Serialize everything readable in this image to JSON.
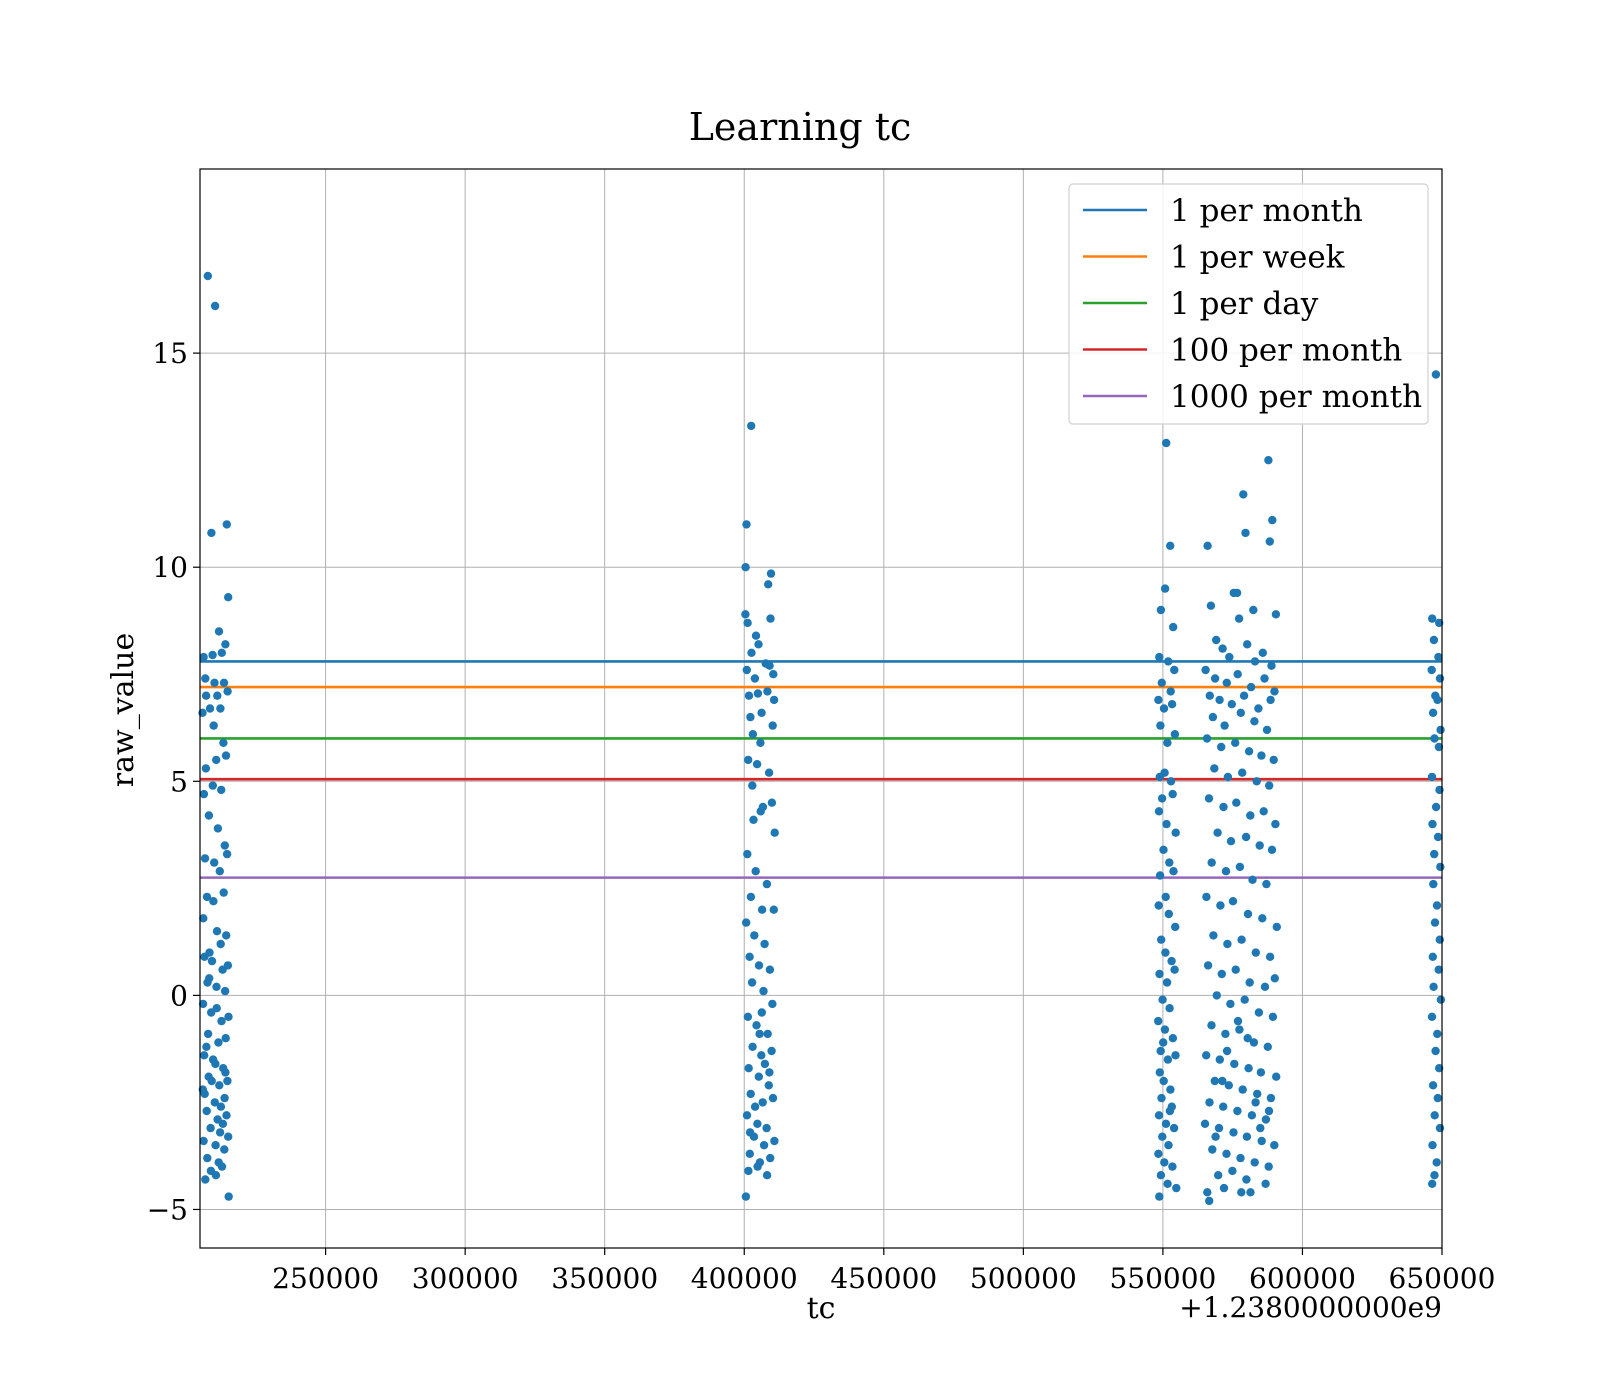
{
  "chart_data": {
    "type": "scatter",
    "title": "Learning tc",
    "xlabel": "tc",
    "ylabel": "raw_value",
    "x_offset_label": "+1.2380000000e9",
    "xlim": [
      205000,
      650000
    ],
    "ylim": [
      -5.9,
      19.3
    ],
    "xticks": [
      250000,
      300000,
      350000,
      400000,
      450000,
      500000,
      550000,
      600000,
      650000
    ],
    "yticks": [
      -5,
      0,
      5,
      10,
      15
    ],
    "ytick_labels": [
      "−5",
      "0",
      "5",
      "10",
      "15"
    ],
    "grid": true,
    "legend_placement": "top-right",
    "scatter_color": "#1f77b4",
    "reference_lines": [
      {
        "name": "1 per month",
        "y": 7.8,
        "color": "#1f77b4"
      },
      {
        "name": "1 per week",
        "y": 7.2,
        "color": "#ff7f0e"
      },
      {
        "name": "1 per day",
        "y": 6.0,
        "color": "#2ca02c"
      },
      {
        "name": "100 per month",
        "y": 5.05,
        "color": "#d62728"
      },
      {
        "name": "1000 per month",
        "y": 2.75,
        "color": "#9467bd"
      }
    ],
    "points": [
      [
        207800,
        16.8
      ],
      [
        210400,
        16.1
      ],
      [
        209100,
        10.8
      ],
      [
        214600,
        11.0
      ],
      [
        215100,
        9.3
      ],
      [
        211800,
        8.5
      ],
      [
        206300,
        7.9
      ],
      [
        209500,
        7.95
      ],
      [
        212800,
        8.0
      ],
      [
        214100,
        8.2
      ],
      [
        206900,
        7.4
      ],
      [
        210200,
        7.3
      ],
      [
        213600,
        7.3
      ],
      [
        207200,
        7.0
      ],
      [
        211200,
        7.0
      ],
      [
        214900,
        7.1
      ],
      [
        205900,
        6.6
      ],
      [
        208600,
        6.7
      ],
      [
        212300,
        6.7
      ],
      [
        209900,
        6.3
      ],
      [
        213400,
        5.9
      ],
      [
        207100,
        5.3
      ],
      [
        210800,
        5.5
      ],
      [
        214300,
        5.6
      ],
      [
        206400,
        4.7
      ],
      [
        209600,
        4.9
      ],
      [
        212600,
        4.8
      ],
      [
        208200,
        4.2
      ],
      [
        211400,
        3.9
      ],
      [
        213900,
        3.5
      ],
      [
        206800,
        3.2
      ],
      [
        210100,
        3.1
      ],
      [
        214700,
        3.3
      ],
      [
        212100,
        2.9
      ],
      [
        207500,
        2.3
      ],
      [
        209800,
        2.2
      ],
      [
        213500,
        2.4
      ],
      [
        206200,
        1.8
      ],
      [
        211100,
        1.5
      ],
      [
        214400,
        1.4
      ],
      [
        208400,
        1.0
      ],
      [
        212400,
        1.2
      ],
      [
        206600,
        0.9
      ],
      [
        209300,
        0.8
      ],
      [
        213100,
        0.6
      ],
      [
        215000,
        0.7
      ],
      [
        207700,
        0.3
      ],
      [
        210900,
        0.2
      ],
      [
        214000,
        0.1
      ],
      [
        206100,
        -0.2
      ],
      [
        209000,
        -0.4
      ],
      [
        212700,
        -0.6
      ],
      [
        215200,
        -0.5
      ],
      [
        207900,
        -0.9
      ],
      [
        211600,
        -1.1
      ],
      [
        214200,
        -1.0
      ],
      [
        206500,
        -1.4
      ],
      [
        209700,
        -1.5
      ],
      [
        213300,
        -1.7
      ],
      [
        208100,
        -1.9
      ],
      [
        211900,
        -2.1
      ],
      [
        214800,
        -2.0
      ],
      [
        206700,
        -2.3
      ],
      [
        210300,
        -2.5
      ],
      [
        213800,
        -2.4
      ],
      [
        207400,
        -2.7
      ],
      [
        211300,
        -2.9
      ],
      [
        214500,
        -2.8
      ],
      [
        208800,
        -3.1
      ],
      [
        212200,
        -3.2
      ],
      [
        206300,
        -3.4
      ],
      [
        210600,
        -3.5
      ],
      [
        213700,
        -3.6
      ],
      [
        207600,
        -3.8
      ],
      [
        211700,
        -3.9
      ],
      [
        208900,
        -4.1
      ],
      [
        212900,
        -4.0
      ],
      [
        206900,
        -4.3
      ],
      [
        210700,
        -4.2
      ],
      [
        215300,
        -4.7
      ],
      [
        207300,
        -1.2
      ],
      [
        209200,
        -2.0
      ],
      [
        211000,
        -0.3
      ],
      [
        212500,
        -2.6
      ],
      [
        214100,
        -1.8
      ],
      [
        208300,
        0.4
      ],
      [
        210500,
        -1.6
      ],
      [
        213200,
        -3.0
      ],
      [
        206000,
        -2.2
      ],
      [
        215100,
        -3.3
      ],
      [
        402500,
        13.3
      ],
      [
        400800,
        11.0
      ],
      [
        400500,
        10.0
      ],
      [
        409600,
        9.85
      ],
      [
        408600,
        9.6
      ],
      [
        400400,
        8.9
      ],
      [
        409400,
        8.8
      ],
      [
        401200,
        8.7
      ],
      [
        404200,
        8.4
      ],
      [
        405100,
        8.2
      ],
      [
        402600,
        8.0
      ],
      [
        407700,
        7.75
      ],
      [
        409100,
        7.7
      ],
      [
        400900,
        7.6
      ],
      [
        403800,
        7.4
      ],
      [
        410400,
        7.5
      ],
      [
        401700,
        7.0
      ],
      [
        404900,
        7.05
      ],
      [
        408300,
        7.1
      ],
      [
        410700,
        6.9
      ],
      [
        402200,
        6.5
      ],
      [
        406200,
        6.6
      ],
      [
        410200,
        6.3
      ],
      [
        403100,
        6.1
      ],
      [
        405800,
        5.9
      ],
      [
        401400,
        5.5
      ],
      [
        404600,
        5.4
      ],
      [
        408900,
        5.2
      ],
      [
        402900,
        4.9
      ],
      [
        406700,
        4.4
      ],
      [
        409900,
        4.5
      ],
      [
        403300,
        4.1
      ],
      [
        405900,
        4.3
      ],
      [
        410900,
        3.8
      ],
      [
        401100,
        3.3
      ],
      [
        404100,
        2.9
      ],
      [
        408100,
        2.6
      ],
      [
        402400,
        2.3
      ],
      [
        406400,
        2.0
      ],
      [
        410600,
        2.0
      ],
      [
        400700,
        1.7
      ],
      [
        403600,
        1.4
      ],
      [
        407300,
        1.2
      ],
      [
        401900,
        0.9
      ],
      [
        405300,
        0.7
      ],
      [
        409200,
        0.6
      ],
      [
        402800,
        0.3
      ],
      [
        406900,
        0.1
      ],
      [
        410100,
        -0.2
      ],
      [
        401300,
        -0.5
      ],
      [
        404400,
        -0.7
      ],
      [
        408400,
        -0.9
      ],
      [
        403000,
        -1.2
      ],
      [
        406100,
        -1.4
      ],
      [
        409800,
        -1.3
      ],
      [
        401600,
        -1.7
      ],
      [
        405200,
        -1.9
      ],
      [
        408800,
        -2.1
      ],
      [
        402300,
        -2.3
      ],
      [
        406600,
        -2.5
      ],
      [
        410300,
        -2.4
      ],
      [
        401000,
        -2.8
      ],
      [
        404700,
        -3.0
      ],
      [
        408000,
        -3.1
      ],
      [
        403500,
        -3.3
      ],
      [
        407100,
        -3.5
      ],
      [
        410800,
        -3.4
      ],
      [
        402000,
        -3.7
      ],
      [
        405600,
        -3.9
      ],
      [
        409300,
        -3.8
      ],
      [
        401500,
        -4.1
      ],
      [
        404800,
        -4.0
      ],
      [
        408200,
        -4.2
      ],
      [
        400600,
        -4.7
      ],
      [
        407400,
        -1.6
      ],
      [
        403900,
        -2.6
      ],
      [
        406300,
        -0.4
      ],
      [
        409000,
        -1.8
      ],
      [
        402100,
        -3.2
      ],
      [
        405500,
        -0.9
      ],
      [
        551200,
        12.9
      ],
      [
        552600,
        10.5
      ],
      [
        550800,
        9.5
      ],
      [
        549300,
        9.0
      ],
      [
        553700,
        8.6
      ],
      [
        548700,
        7.9
      ],
      [
        551900,
        7.8
      ],
      [
        554100,
        7.6
      ],
      [
        549600,
        7.3
      ],
      [
        552800,
        7.1
      ],
      [
        548400,
        6.9
      ],
      [
        550400,
        6.7
      ],
      [
        553300,
        6.8
      ],
      [
        549100,
        6.3
      ],
      [
        551600,
        5.9
      ],
      [
        554300,
        6.1
      ],
      [
        548900,
        5.1
      ],
      [
        550600,
        5.2
      ],
      [
        552900,
        5.0
      ],
      [
        549700,
        4.6
      ],
      [
        553500,
        4.7
      ],
      [
        548600,
        4.3
      ],
      [
        551300,
        4.0
      ],
      [
        554600,
        3.8
      ],
      [
        550200,
        3.4
      ],
      [
        552300,
        3.1
      ],
      [
        549000,
        2.8
      ],
      [
        553800,
        2.9
      ],
      [
        551000,
        2.3
      ],
      [
        548500,
        2.1
      ],
      [
        552100,
        1.9
      ],
      [
        554400,
        1.6
      ],
      [
        549400,
        1.3
      ],
      [
        550900,
        1.0
      ],
      [
        553100,
        0.8
      ],
      [
        548800,
        0.5
      ],
      [
        551500,
        0.3
      ],
      [
        554200,
        0.6
      ],
      [
        549900,
        -0.1
      ],
      [
        552400,
        -0.3
      ],
      [
        548300,
        -0.6
      ],
      [
        550700,
        -0.8
      ],
      [
        553600,
        -1.0
      ],
      [
        549200,
        -1.3
      ],
      [
        551800,
        -1.5
      ],
      [
        554500,
        -1.4
      ],
      [
        548900,
        -1.8
      ],
      [
        550300,
        -2.0
      ],
      [
        552700,
        -2.2
      ],
      [
        549500,
        -2.4
      ],
      [
        553200,
        -2.6
      ],
      [
        548600,
        -2.8
      ],
      [
        551100,
        -3.0
      ],
      [
        554000,
        -3.1
      ],
      [
        549800,
        -3.3
      ],
      [
        552000,
        -3.5
      ],
      [
        548400,
        -3.7
      ],
      [
        550500,
        -3.9
      ],
      [
        553400,
        -4.0
      ],
      [
        549300,
        -4.2
      ],
      [
        551700,
        -4.4
      ],
      [
        548700,
        -4.7
      ],
      [
        554800,
        -4.5
      ],
      [
        550100,
        -1.1
      ],
      [
        552500,
        -2.7
      ],
      [
        566000,
        10.5
      ],
      [
        578800,
        11.7
      ],
      [
        587800,
        12.5
      ],
      [
        589200,
        11.1
      ],
      [
        579600,
        10.8
      ],
      [
        588300,
        10.6
      ],
      [
        575400,
        9.4
      ],
      [
        576600,
        9.4
      ],
      [
        567200,
        9.1
      ],
      [
        582400,
        9.0
      ],
      [
        590500,
        8.9
      ],
      [
        577300,
        8.8
      ],
      [
        569100,
        8.3
      ],
      [
        571400,
        8.1
      ],
      [
        580200,
        8.2
      ],
      [
        585800,
        8.0
      ],
      [
        573800,
        7.9
      ],
      [
        583000,
        7.8
      ],
      [
        588900,
        7.7
      ],
      [
        565300,
        7.6
      ],
      [
        568700,
        7.4
      ],
      [
        572900,
        7.3
      ],
      [
        576800,
        7.5
      ],
      [
        581600,
        7.2
      ],
      [
        586400,
        7.4
      ],
      [
        590000,
        7.1
      ],
      [
        566800,
        7.0
      ],
      [
        570300,
        6.9
      ],
      [
        574700,
        6.8
      ],
      [
        579100,
        7.0
      ],
      [
        584200,
        6.7
      ],
      [
        588600,
        6.9
      ],
      [
        567900,
        6.5
      ],
      [
        572100,
        6.3
      ],
      [
        577900,
        6.6
      ],
      [
        582800,
        6.4
      ],
      [
        587300,
        6.2
      ],
      [
        565800,
        6.0
      ],
      [
        570900,
        5.8
      ],
      [
        575900,
        5.9
      ],
      [
        580900,
        5.7
      ],
      [
        585300,
        5.6
      ],
      [
        589700,
        5.5
      ],
      [
        568400,
        5.3
      ],
      [
        573300,
        5.1
      ],
      [
        578400,
        5.2
      ],
      [
        583600,
        5.0
      ],
      [
        588100,
        4.9
      ],
      [
        566500,
        4.6
      ],
      [
        571700,
        4.4
      ],
      [
        576300,
        4.5
      ],
      [
        581300,
        4.2
      ],
      [
        586100,
        4.3
      ],
      [
        590300,
        4.0
      ],
      [
        569600,
        3.8
      ],
      [
        574400,
        3.6
      ],
      [
        579800,
        3.7
      ],
      [
        584700,
        3.5
      ],
      [
        589100,
        3.4
      ],
      [
        567500,
        3.1
      ],
      [
        572600,
        2.9
      ],
      [
        577600,
        3.0
      ],
      [
        582100,
        2.7
      ],
      [
        587100,
        2.6
      ],
      [
        565600,
        2.3
      ],
      [
        570600,
        2.1
      ],
      [
        575100,
        2.2
      ],
      [
        580500,
        1.9
      ],
      [
        585600,
        1.8
      ],
      [
        590800,
        1.6
      ],
      [
        568100,
        1.4
      ],
      [
        573100,
        1.2
      ],
      [
        578200,
        1.3
      ],
      [
        583300,
        1.0
      ],
      [
        588400,
        0.9
      ],
      [
        566200,
        0.7
      ],
      [
        571100,
        0.5
      ],
      [
        576100,
        0.6
      ],
      [
        581100,
        0.3
      ],
      [
        586600,
        0.2
      ],
      [
        590100,
        0.4
      ],
      [
        569300,
        0.0
      ],
      [
        574200,
        -0.2
      ],
      [
        579300,
        -0.1
      ],
      [
        584400,
        -0.4
      ],
      [
        589400,
        -0.5
      ],
      [
        567400,
        -0.7
      ],
      [
        572400,
        -0.9
      ],
      [
        577400,
        -0.8
      ],
      [
        582600,
        -1.1
      ],
      [
        587600,
        -1.2
      ],
      [
        565500,
        -1.4
      ],
      [
        570400,
        -1.5
      ],
      [
        575600,
        -1.6
      ],
      [
        580700,
        -1.7
      ],
      [
        585100,
        -1.8
      ],
      [
        590600,
        -1.9
      ],
      [
        568600,
        -2.0
      ],
      [
        573600,
        -2.1
      ],
      [
        578600,
        -2.2
      ],
      [
        583800,
        -2.3
      ],
      [
        588700,
        -2.4
      ],
      [
        566700,
        -2.5
      ],
      [
        571600,
        -2.6
      ],
      [
        576700,
        -2.7
      ],
      [
        581900,
        -2.8
      ],
      [
        586900,
        -2.9
      ],
      [
        565100,
        -3.0
      ],
      [
        570100,
        -3.1
      ],
      [
        575300,
        -3.2
      ],
      [
        580100,
        -3.3
      ],
      [
        585400,
        -3.4
      ],
      [
        589900,
        -3.5
      ],
      [
        567700,
        -3.6
      ],
      [
        572800,
        -3.7
      ],
      [
        577800,
        -3.8
      ],
      [
        582900,
        -3.9
      ],
      [
        587900,
        -4.0
      ],
      [
        569800,
        -4.2
      ],
      [
        574900,
        -4.1
      ],
      [
        579900,
        -4.3
      ],
      [
        565900,
        -4.6
      ],
      [
        571900,
        -4.5
      ],
      [
        578100,
        -4.6
      ],
      [
        581400,
        -4.6
      ],
      [
        566600,
        -4.8
      ],
      [
        586800,
        -4.4
      ],
      [
        573000,
        -1.3
      ],
      [
        583200,
        -2.5
      ],
      [
        576900,
        -0.6
      ],
      [
        584900,
        -3.1
      ],
      [
        571300,
        -2.0
      ],
      [
        580400,
        -1.0
      ],
      [
        588000,
        -2.7
      ],
      [
        568900,
        -3.3
      ],
      [
        647800,
        14.5
      ],
      [
        646500,
        8.8
      ],
      [
        649000,
        8.7
      ],
      [
        647100,
        8.3
      ],
      [
        648700,
        7.9
      ],
      [
        646300,
        7.6
      ],
      [
        649300,
        7.4
      ],
      [
        647600,
        7.0
      ],
      [
        648400,
        6.9
      ],
      [
        646800,
        6.6
      ],
      [
        649500,
        6.2
      ],
      [
        647300,
        6.0
      ],
      [
        648900,
        5.8
      ],
      [
        646400,
        5.1
      ],
      [
        649100,
        4.8
      ],
      [
        647900,
        4.4
      ],
      [
        646600,
        4.0
      ],
      [
        648600,
        3.7
      ],
      [
        647200,
        3.3
      ],
      [
        649400,
        3.0
      ],
      [
        646900,
        2.6
      ],
      [
        648200,
        2.1
      ],
      [
        647500,
        1.7
      ],
      [
        649200,
        1.3
      ],
      [
        646700,
        0.9
      ],
      [
        648800,
        0.6
      ],
      [
        647000,
        0.2
      ],
      [
        649600,
        -0.1
      ],
      [
        646400,
        -0.5
      ],
      [
        648300,
        -0.9
      ],
      [
        647700,
        -1.3
      ],
      [
        649000,
        -1.7
      ],
      [
        646800,
        -2.1
      ],
      [
        648500,
        -2.4
      ],
      [
        647400,
        -2.8
      ],
      [
        649300,
        -3.1
      ],
      [
        646600,
        -3.5
      ],
      [
        648100,
        -3.9
      ],
      [
        647300,
        -4.2
      ],
      [
        646500,
        -4.4
      ]
    ]
  }
}
